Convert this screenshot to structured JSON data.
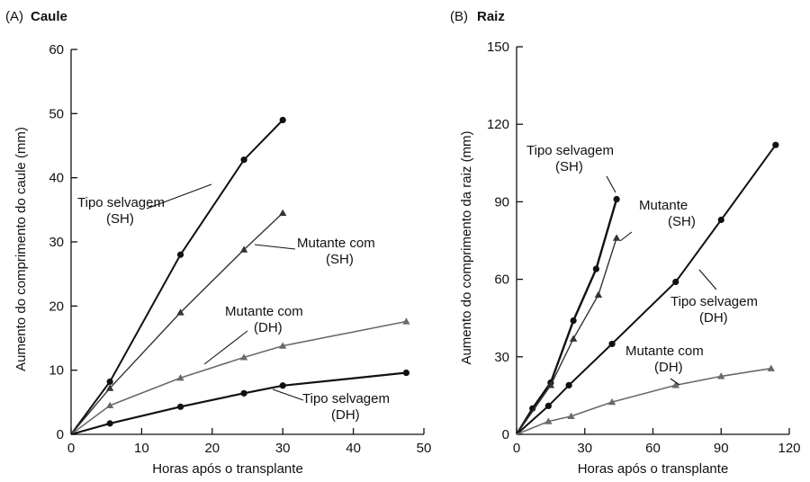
{
  "chart_data": [
    {
      "type": "line",
      "panel_id": "(A)",
      "title": "Caule",
      "xlabel": "Horas após o transplante",
      "ylabel": "Aumento do comprimento do caule (mm)",
      "xlim": [
        0,
        50
      ],
      "ylim": [
        0,
        60
      ],
      "xticks": [
        0,
        10,
        20,
        30,
        40,
        50
      ],
      "yticks": [
        0,
        10,
        20,
        30,
        40,
        50,
        60
      ],
      "grid": false,
      "series": [
        {
          "marker": "circle",
          "points": [
            [
              0,
              0
            ],
            [
              5.5,
              8.2
            ],
            [
              15.5,
              28
            ],
            [
              24.5,
              42.8
            ],
            [
              30,
              49
            ]
          ],
          "label": [
            "Tipo selvagem",
            "(SH)"
          ]
        },
        {
          "marker": "triangle",
          "points": [
            [
              0,
              0
            ],
            [
              5.5,
              7.2
            ],
            [
              15.5,
              19
            ],
            [
              24.5,
              28.8
            ],
            [
              30,
              34.5
            ]
          ],
          "label": [
            "Mutante com",
            "(SH)"
          ]
        },
        {
          "marker": "triangle",
          "points": [
            [
              0,
              0
            ],
            [
              5.5,
              4.5
            ],
            [
              15.5,
              8.8
            ],
            [
              24.5,
              12
            ],
            [
              30,
              13.8
            ],
            [
              47.5,
              17.6
            ]
          ],
          "label": [
            "Mutante com",
            "(DH)"
          ]
        },
        {
          "marker": "circle",
          "points": [
            [
              0,
              0
            ],
            [
              5.5,
              1.7
            ],
            [
              15.5,
              4.3
            ],
            [
              24.5,
              6.4
            ],
            [
              30,
              7.6
            ],
            [
              47.5,
              9.6
            ]
          ],
          "label": [
            "Tipo selvagem",
            "(DH)"
          ]
        }
      ]
    },
    {
      "type": "line",
      "panel_id": "(B)",
      "title": "Raiz",
      "xlabel": "Horas após o transplante",
      "ylabel": "Aumento do comprimento da raiz (mm)",
      "xlim": [
        0,
        120
      ],
      "ylim": [
        0,
        150
      ],
      "xticks": [
        0,
        30,
        60,
        90,
        120
      ],
      "yticks": [
        0,
        30,
        60,
        90,
        120,
        150
      ],
      "grid": false,
      "series": [
        {
          "marker": "circle",
          "points": [
            [
              0,
              0
            ],
            [
              7,
              10
            ],
            [
              15,
              20
            ],
            [
              25,
              44
            ],
            [
              35,
              64
            ],
            [
              44,
              91
            ]
          ],
          "label": [
            "Tipo selvagem",
            "(SH)"
          ]
        },
        {
          "marker": "triangle",
          "points": [
            [
              0,
              0
            ],
            [
              15,
              19
            ],
            [
              25,
              37
            ],
            [
              36,
              54
            ],
            [
              44,
              76
            ]
          ],
          "label": [
            "Mutante",
            "(SH)"
          ]
        },
        {
          "marker": "circle",
          "points": [
            [
              0,
              0
            ],
            [
              14,
              11
            ],
            [
              23,
              19
            ],
            [
              42,
              35
            ],
            [
              70,
              59
            ],
            [
              90,
              83
            ],
            [
              114,
              112
            ]
          ],
          "label": [
            "Tipo selvagem",
            "(DH)"
          ]
        },
        {
          "marker": "triangle",
          "points": [
            [
              0,
              0
            ],
            [
              14,
              5
            ],
            [
              24,
              7
            ],
            [
              42,
              12.5
            ],
            [
              70,
              19
            ],
            [
              90,
              22.5
            ],
            [
              112,
              25.5
            ]
          ],
          "label": [
            "Mutante com",
            "(DH)"
          ]
        }
      ]
    }
  ]
}
